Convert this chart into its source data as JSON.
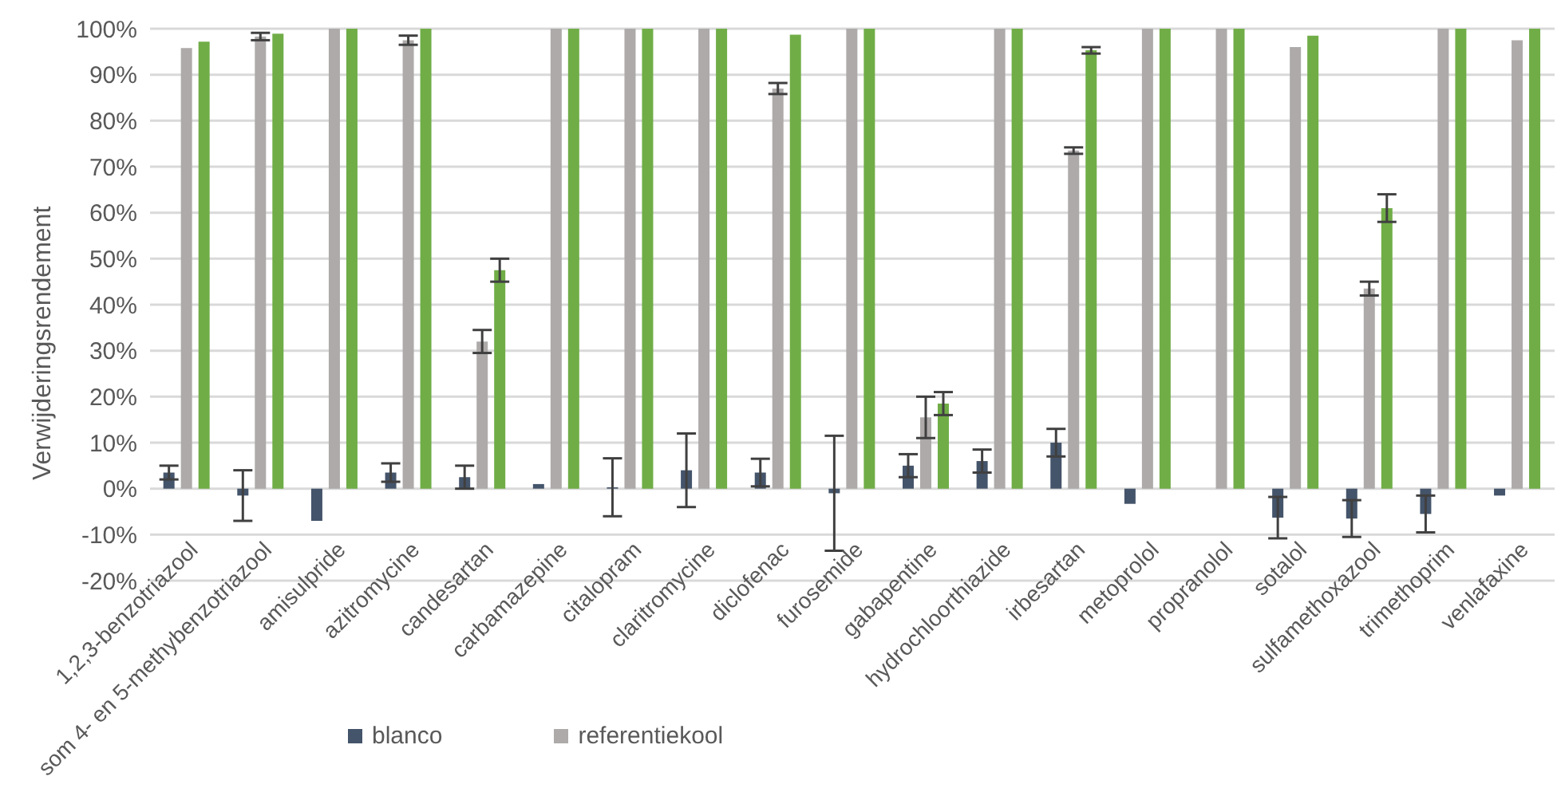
{
  "chart_data": {
    "type": "bar",
    "ylabel": "Verwijderingsrendement",
    "categories": [
      "1,2,3-benzotriazool",
      "som 4- en 5-methybenzotriazool",
      "amisulpride",
      "azitromycine",
      "candesartan",
      "carbamazepine",
      "citalopram",
      "claritromycine",
      "diclofenac",
      "furosemide",
      "gabapentine",
      "hydrochloorthiazide",
      "irbesartan",
      "metoprolol",
      "propranolol",
      "sotalol",
      "sulfamethoxazool",
      "trimethoprim",
      "venlafaxine"
    ],
    "series": [
      {
        "name": "blanco",
        "color": "#44546a",
        "values": [
          3.5,
          -1.5,
          -7,
          3.5,
          2.5,
          1,
          0.3,
          4,
          3.5,
          -1,
          5,
          6,
          10,
          -3.3,
          null,
          -6.3,
          -6.5,
          -5.5,
          -1.5
        ],
        "errors": [
          1.5,
          5.5,
          null,
          2,
          2.5,
          null,
          6.3,
          8,
          3,
          12.5,
          2.5,
          2.5,
          3,
          null,
          null,
          4.5,
          4,
          4,
          null
        ]
      },
      {
        "name": "referentiekool",
        "color": "#aeaaaa",
        "values": [
          95.8,
          98.3,
          100,
          97.5,
          32,
          100,
          100,
          100,
          87,
          100,
          15.5,
          100,
          73.5,
          100,
          100,
          96,
          43.5,
          100,
          97.5
        ],
        "errors": [
          null,
          0.8,
          null,
          1,
          2.5,
          null,
          null,
          null,
          1.2,
          null,
          4.5,
          null,
          0.7,
          null,
          null,
          null,
          1.5,
          null,
          null
        ]
      },
      {
        "color": "#70ad47",
        "values": [
          97.2,
          98.9,
          100,
          100,
          47.5,
          100,
          100,
          100,
          98.7,
          100,
          18.5,
          100,
          95.3,
          100,
          100,
          98.5,
          61,
          100,
          100
        ],
        "errors": [
          null,
          null,
          null,
          null,
          2.5,
          null,
          null,
          null,
          null,
          null,
          2.5,
          null,
          0.7,
          null,
          null,
          null,
          3,
          null,
          null
        ]
      }
    ],
    "ylim": [
      -20,
      100
    ],
    "yticks": [
      {
        "value": -20,
        "label": "-20%"
      },
      {
        "value": -10,
        "label": "-10%"
      },
      {
        "value": 0,
        "label": "0%"
      },
      {
        "value": 10,
        "label": "10%"
      },
      {
        "value": 20,
        "label": "20%"
      },
      {
        "value": 30,
        "label": "30%"
      },
      {
        "value": 40,
        "label": "40%"
      },
      {
        "value": 50,
        "label": "50%"
      },
      {
        "value": 60,
        "label": "60%"
      },
      {
        "value": 70,
        "label": "70%"
      },
      {
        "value": 80,
        "label": "80%"
      },
      {
        "value": 90,
        "label": "90%"
      },
      {
        "value": 100,
        "label": "100%"
      }
    ],
    "grid": "y",
    "legend": "bottom"
  }
}
